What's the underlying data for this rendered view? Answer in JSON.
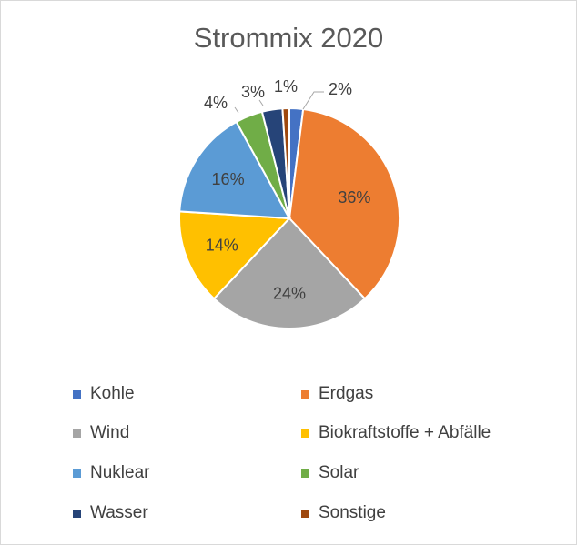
{
  "chart_data": {
    "type": "pie",
    "title": "Strommix 2020",
    "categories": [
      "Kohle",
      "Erdgas",
      "Wind",
      "Biokraftstoffe + Abfälle",
      "Nuklear",
      "Solar",
      "Wasser",
      "Sonstige"
    ],
    "values": [
      2,
      36,
      24,
      14,
      16,
      4,
      3,
      1
    ],
    "labels": [
      "2%",
      "36%",
      "24%",
      "14%",
      "16%",
      "4%",
      "3%",
      "1%"
    ],
    "colors": [
      "#4472c4",
      "#ed7d31",
      "#a5a5a5",
      "#ffc000",
      "#5b9bd5",
      "#70ad47",
      "#264478",
      "#9e480e"
    ],
    "legend_position": "bottom",
    "start_angle_deg": 0,
    "direction": "clockwise"
  }
}
